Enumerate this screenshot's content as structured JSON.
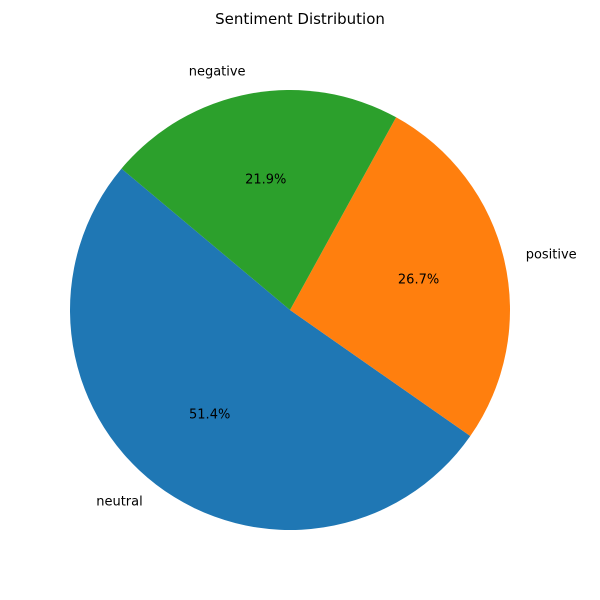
{
  "chart_data": {
    "type": "pie",
    "title": "Sentiment Distribution",
    "start_angle_deg": 140,
    "direction": "counterclockwise",
    "slices": [
      {
        "label": "neutral",
        "value": 51.4,
        "pct_label": "51.4%",
        "color": "#1f77b4"
      },
      {
        "label": "positive",
        "value": 26.7,
        "pct_label": "26.7%",
        "color": "#ff7f0e"
      },
      {
        "label": "negative",
        "value": 21.9,
        "pct_label": "21.9%",
        "color": "#2ca02c"
      }
    ]
  }
}
